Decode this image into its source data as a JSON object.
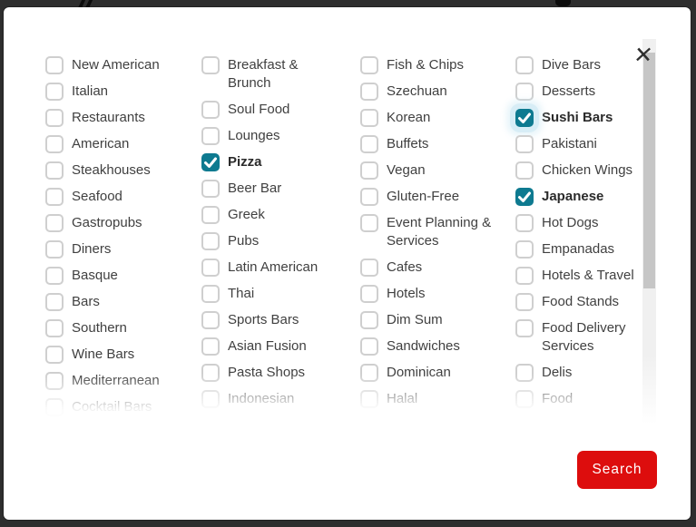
{
  "modal": {
    "close_icon": "✕",
    "search_button_label": "Search",
    "columns": [
      {
        "items": [
          {
            "label": "New American",
            "checked": false
          },
          {
            "label": "Italian",
            "checked": false
          },
          {
            "label": "Restaurants",
            "checked": false
          },
          {
            "label": "American",
            "checked": false
          },
          {
            "label": "Steakhouses",
            "checked": false
          },
          {
            "label": "Seafood",
            "checked": false
          },
          {
            "label": "Gastropubs",
            "checked": false
          },
          {
            "label": "Diners",
            "checked": false
          },
          {
            "label": "Basque",
            "checked": false
          },
          {
            "label": "Bars",
            "checked": false
          },
          {
            "label": "Southern",
            "checked": false
          },
          {
            "label": "Wine Bars",
            "checked": false
          },
          {
            "label": "Mediterranean",
            "checked": false
          },
          {
            "label": "Cocktail Bars",
            "checked": false
          }
        ]
      },
      {
        "items": [
          {
            "label": "Breakfast & Brunch",
            "checked": false
          },
          {
            "label": "Soul Food",
            "checked": false
          },
          {
            "label": "Lounges",
            "checked": false
          },
          {
            "label": "Pizza",
            "checked": true
          },
          {
            "label": "Beer Bar",
            "checked": false
          },
          {
            "label": "Greek",
            "checked": false
          },
          {
            "label": "Pubs",
            "checked": false
          },
          {
            "label": "Latin American",
            "checked": false
          },
          {
            "label": "Thai",
            "checked": false
          },
          {
            "label": "Sports Bars",
            "checked": false
          },
          {
            "label": "Asian Fusion",
            "checked": false
          },
          {
            "label": "Pasta Shops",
            "checked": false
          },
          {
            "label": "Indonesian",
            "checked": false
          }
        ]
      },
      {
        "items": [
          {
            "label": "Fish & Chips",
            "checked": false
          },
          {
            "label": "Szechuan",
            "checked": false
          },
          {
            "label": "Korean",
            "checked": false
          },
          {
            "label": "Buffets",
            "checked": false
          },
          {
            "label": "Vegan",
            "checked": false
          },
          {
            "label": "Gluten-Free",
            "checked": false
          },
          {
            "label": "Event Planning & Services",
            "checked": false
          },
          {
            "label": "Cafes",
            "checked": false
          },
          {
            "label": "Hotels",
            "checked": false
          },
          {
            "label": "Dim Sum",
            "checked": false
          },
          {
            "label": "Sandwiches",
            "checked": false
          },
          {
            "label": "Dominican",
            "checked": false
          },
          {
            "label": "Halal",
            "checked": false
          }
        ]
      },
      {
        "items": [
          {
            "label": "Dive Bars",
            "checked": false
          },
          {
            "label": "Desserts",
            "checked": false
          },
          {
            "label": "Sushi Bars",
            "checked": true,
            "focused": true
          },
          {
            "label": "Pakistani",
            "checked": false
          },
          {
            "label": "Chicken Wings",
            "checked": false
          },
          {
            "label": "Japanese",
            "checked": true
          },
          {
            "label": "Hot Dogs",
            "checked": false
          },
          {
            "label": "Empanadas",
            "checked": false
          },
          {
            "label": "Hotels & Travel",
            "checked": false
          },
          {
            "label": "Food Stands",
            "checked": false
          },
          {
            "label": "Food Delivery Services",
            "checked": false
          },
          {
            "label": "Delis",
            "checked": false
          },
          {
            "label": "Food",
            "checked": false
          }
        ]
      }
    ]
  },
  "colors": {
    "checkbox_checked_teal": "#0e7a90",
    "search_button_red": "#dd0d0d",
    "overlay_background": "#2e2e2e",
    "scrollbar_thumb": "#c6c6c6",
    "scrollbar_track": "#f0f0f0"
  }
}
